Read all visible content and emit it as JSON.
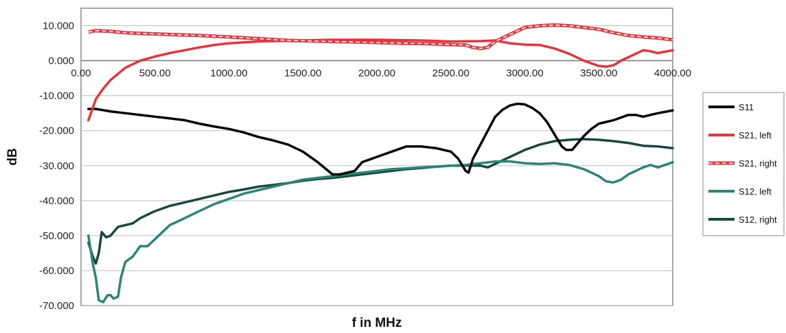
{
  "chart_data": {
    "type": "line",
    "title": "",
    "xlabel": "f in MHz",
    "ylabel": "dB",
    "xlim": [
      0,
      4000
    ],
    "ylim": [
      -70,
      15
    ],
    "x_ticks": [
      "0.00",
      "500.00",
      "1000.00",
      "1500.00",
      "2000.00",
      "2500.00",
      "3000.00",
      "3500.00",
      "4000.00"
    ],
    "y_ticks": [
      "10.000",
      "0.000",
      "-10.000",
      "-20.000",
      "-30.000",
      "-40.000",
      "-50.000",
      "-60.000",
      "-70.000"
    ],
    "grid": "horizontal",
    "legend_position": "right",
    "series": [
      {
        "name": "S11",
        "color": "#000000",
        "style": "solid",
        "points": [
          [
            50,
            -13.8
          ],
          [
            100,
            -13.8
          ],
          [
            200,
            -14.5
          ],
          [
            300,
            -15
          ],
          [
            400,
            -15.5
          ],
          [
            500,
            -16
          ],
          [
            600,
            -16.5
          ],
          [
            700,
            -17
          ],
          [
            800,
            -18
          ],
          [
            900,
            -18.8
          ],
          [
            1000,
            -19.5
          ],
          [
            1100,
            -20.5
          ],
          [
            1200,
            -21.8
          ],
          [
            1300,
            -22.8
          ],
          [
            1400,
            -24
          ],
          [
            1500,
            -26
          ],
          [
            1600,
            -29
          ],
          [
            1700,
            -32.5
          ],
          [
            1750,
            -32.5
          ],
          [
            1800,
            -32
          ],
          [
            1850,
            -31.5
          ],
          [
            1900,
            -29
          ],
          [
            2000,
            -27.5
          ],
          [
            2100,
            -26
          ],
          [
            2200,
            -24.5
          ],
          [
            2300,
            -24.5
          ],
          [
            2400,
            -25
          ],
          [
            2500,
            -26
          ],
          [
            2550,
            -28
          ],
          [
            2600,
            -31.5
          ],
          [
            2620,
            -32
          ],
          [
            2650,
            -28
          ],
          [
            2700,
            -24
          ],
          [
            2750,
            -20
          ],
          [
            2800,
            -16
          ],
          [
            2850,
            -14
          ],
          [
            2900,
            -12.8
          ],
          [
            2950,
            -12.3
          ],
          [
            3000,
            -12.5
          ],
          [
            3050,
            -13.5
          ],
          [
            3100,
            -15
          ],
          [
            3150,
            -17.5
          ],
          [
            3200,
            -21
          ],
          [
            3250,
            -24.5
          ],
          [
            3280,
            -25.5
          ],
          [
            3320,
            -25.5
          ],
          [
            3350,
            -24
          ],
          [
            3400,
            -21.5
          ],
          [
            3450,
            -19.5
          ],
          [
            3500,
            -18
          ],
          [
            3600,
            -17
          ],
          [
            3700,
            -15.5
          ],
          [
            3750,
            -15.5
          ],
          [
            3800,
            -16
          ],
          [
            3850,
            -15.5
          ],
          [
            3900,
            -15
          ],
          [
            4000,
            -14.2
          ]
        ]
      },
      {
        "name": "S21, left",
        "color": "#e8323c",
        "style": "solid",
        "points": [
          [
            50,
            -17
          ],
          [
            100,
            -11
          ],
          [
            150,
            -8
          ],
          [
            200,
            -5.5
          ],
          [
            300,
            -2
          ],
          [
            400,
            0
          ],
          [
            500,
            1.2
          ],
          [
            600,
            2.2
          ],
          [
            700,
            3
          ],
          [
            800,
            3.8
          ],
          [
            900,
            4.5
          ],
          [
            1000,
            5
          ],
          [
            1200,
            5.5
          ],
          [
            1500,
            5.8
          ],
          [
            1700,
            6
          ],
          [
            2000,
            6
          ],
          [
            2300,
            5.8
          ],
          [
            2500,
            5.5
          ],
          [
            2700,
            5.6
          ],
          [
            2800,
            5.8
          ],
          [
            2900,
            5
          ],
          [
            3000,
            4.6
          ],
          [
            3100,
            4.5
          ],
          [
            3200,
            3.5
          ],
          [
            3300,
            2
          ],
          [
            3400,
            0
          ],
          [
            3500,
            -1.5
          ],
          [
            3550,
            -1.7
          ],
          [
            3600,
            -1.3
          ],
          [
            3650,
            0
          ],
          [
            3700,
            1
          ],
          [
            3750,
            2
          ],
          [
            3800,
            3
          ],
          [
            3850,
            2.7
          ],
          [
            3900,
            2.2
          ],
          [
            4000,
            3
          ]
        ]
      },
      {
        "name": "S21, right",
        "color": "#e8323c",
        "style": "dashed",
        "points": [
          [
            50,
            8.2
          ],
          [
            100,
            8.6
          ],
          [
            200,
            8.4
          ],
          [
            300,
            8
          ],
          [
            400,
            7.8
          ],
          [
            600,
            7.5
          ],
          [
            800,
            7.2
          ],
          [
            1000,
            6.8
          ],
          [
            1200,
            6.3
          ],
          [
            1400,
            5.8
          ],
          [
            1600,
            5.6
          ],
          [
            1800,
            5.4
          ],
          [
            2000,
            5.2
          ],
          [
            2200,
            5
          ],
          [
            2400,
            4.8
          ],
          [
            2500,
            4.6
          ],
          [
            2600,
            4.5
          ],
          [
            2650,
            3.8
          ],
          [
            2700,
            3.5
          ],
          [
            2750,
            3.8
          ],
          [
            2800,
            5.5
          ],
          [
            2900,
            7.5
          ],
          [
            3000,
            9.5
          ],
          [
            3100,
            10
          ],
          [
            3200,
            10.2
          ],
          [
            3300,
            10
          ],
          [
            3400,
            9.5
          ],
          [
            3500,
            9
          ],
          [
            3600,
            8
          ],
          [
            3700,
            7.2
          ],
          [
            3800,
            6.8
          ],
          [
            3900,
            6.5
          ],
          [
            4000,
            6
          ]
        ]
      },
      {
        "name": "S12, left",
        "color": "#2a8577",
        "style": "solid",
        "points": [
          [
            50,
            -50
          ],
          [
            80,
            -58
          ],
          [
            100,
            -62
          ],
          [
            120,
            -68.5
          ],
          [
            150,
            -69
          ],
          [
            180,
            -67
          ],
          [
            200,
            -67
          ],
          [
            220,
            -68
          ],
          [
            250,
            -67.5
          ],
          [
            270,
            -62
          ],
          [
            300,
            -57.5
          ],
          [
            350,
            -56
          ],
          [
            400,
            -53
          ],
          [
            450,
            -53
          ],
          [
            500,
            -51
          ],
          [
            550,
            -49
          ],
          [
            600,
            -47
          ],
          [
            650,
            -46
          ],
          [
            700,
            -45
          ],
          [
            800,
            -43
          ],
          [
            900,
            -41
          ],
          [
            1000,
            -39.5
          ],
          [
            1100,
            -38
          ],
          [
            1200,
            -37
          ],
          [
            1300,
            -36
          ],
          [
            1400,
            -35
          ],
          [
            1500,
            -34
          ],
          [
            1600,
            -33.5
          ],
          [
            1700,
            -33
          ],
          [
            1800,
            -32.5
          ],
          [
            1900,
            -32
          ],
          [
            2000,
            -31.5
          ],
          [
            2100,
            -31
          ],
          [
            2200,
            -30.8
          ],
          [
            2300,
            -30.5
          ],
          [
            2400,
            -30.3
          ],
          [
            2500,
            -30
          ],
          [
            2600,
            -29.8
          ],
          [
            2700,
            -29.3
          ],
          [
            2800,
            -28.8
          ],
          [
            2900,
            -28.8
          ],
          [
            3000,
            -29.3
          ],
          [
            3100,
            -29.5
          ],
          [
            3200,
            -29.3
          ],
          [
            3300,
            -29.8
          ],
          [
            3400,
            -31
          ],
          [
            3500,
            -33
          ],
          [
            3550,
            -34.5
          ],
          [
            3600,
            -34.8
          ],
          [
            3650,
            -34
          ],
          [
            3700,
            -32.5
          ],
          [
            3800,
            -30.5
          ],
          [
            3850,
            -29.8
          ],
          [
            3900,
            -30.5
          ],
          [
            4000,
            -29
          ]
        ]
      },
      {
        "name": "S12, right",
        "color": "#17483e",
        "style": "solid",
        "points": [
          [
            50,
            -52
          ],
          [
            80,
            -56
          ],
          [
            100,
            -58
          ],
          [
            120,
            -55
          ],
          [
            140,
            -49
          ],
          [
            170,
            -50.5
          ],
          [
            200,
            -50
          ],
          [
            250,
            -47.5
          ],
          [
            300,
            -47
          ],
          [
            350,
            -46.5
          ],
          [
            400,
            -45
          ],
          [
            450,
            -44
          ],
          [
            500,
            -43
          ],
          [
            600,
            -41.5
          ],
          [
            700,
            -40.5
          ],
          [
            800,
            -39.5
          ],
          [
            900,
            -38.5
          ],
          [
            1000,
            -37.5
          ],
          [
            1100,
            -36.8
          ],
          [
            1200,
            -36
          ],
          [
            1300,
            -35.5
          ],
          [
            1400,
            -35
          ],
          [
            1500,
            -34.3
          ],
          [
            1600,
            -33.8
          ],
          [
            1700,
            -33.5
          ],
          [
            1800,
            -33
          ],
          [
            1900,
            -32.5
          ],
          [
            2000,
            -32
          ],
          [
            2100,
            -31.5
          ],
          [
            2200,
            -31
          ],
          [
            2300,
            -30.7
          ],
          [
            2400,
            -30.3
          ],
          [
            2500,
            -30
          ],
          [
            2600,
            -30
          ],
          [
            2700,
            -30
          ],
          [
            2750,
            -30.5
          ],
          [
            2800,
            -29.5
          ],
          [
            2900,
            -27.5
          ],
          [
            3000,
            -25.5
          ],
          [
            3100,
            -24
          ],
          [
            3200,
            -23
          ],
          [
            3300,
            -22.6
          ],
          [
            3400,
            -22.4
          ],
          [
            3500,
            -22.6
          ],
          [
            3600,
            -23
          ],
          [
            3700,
            -23.5
          ],
          [
            3800,
            -24.3
          ],
          [
            3900,
            -24.5
          ],
          [
            4000,
            -25
          ]
        ]
      }
    ]
  }
}
